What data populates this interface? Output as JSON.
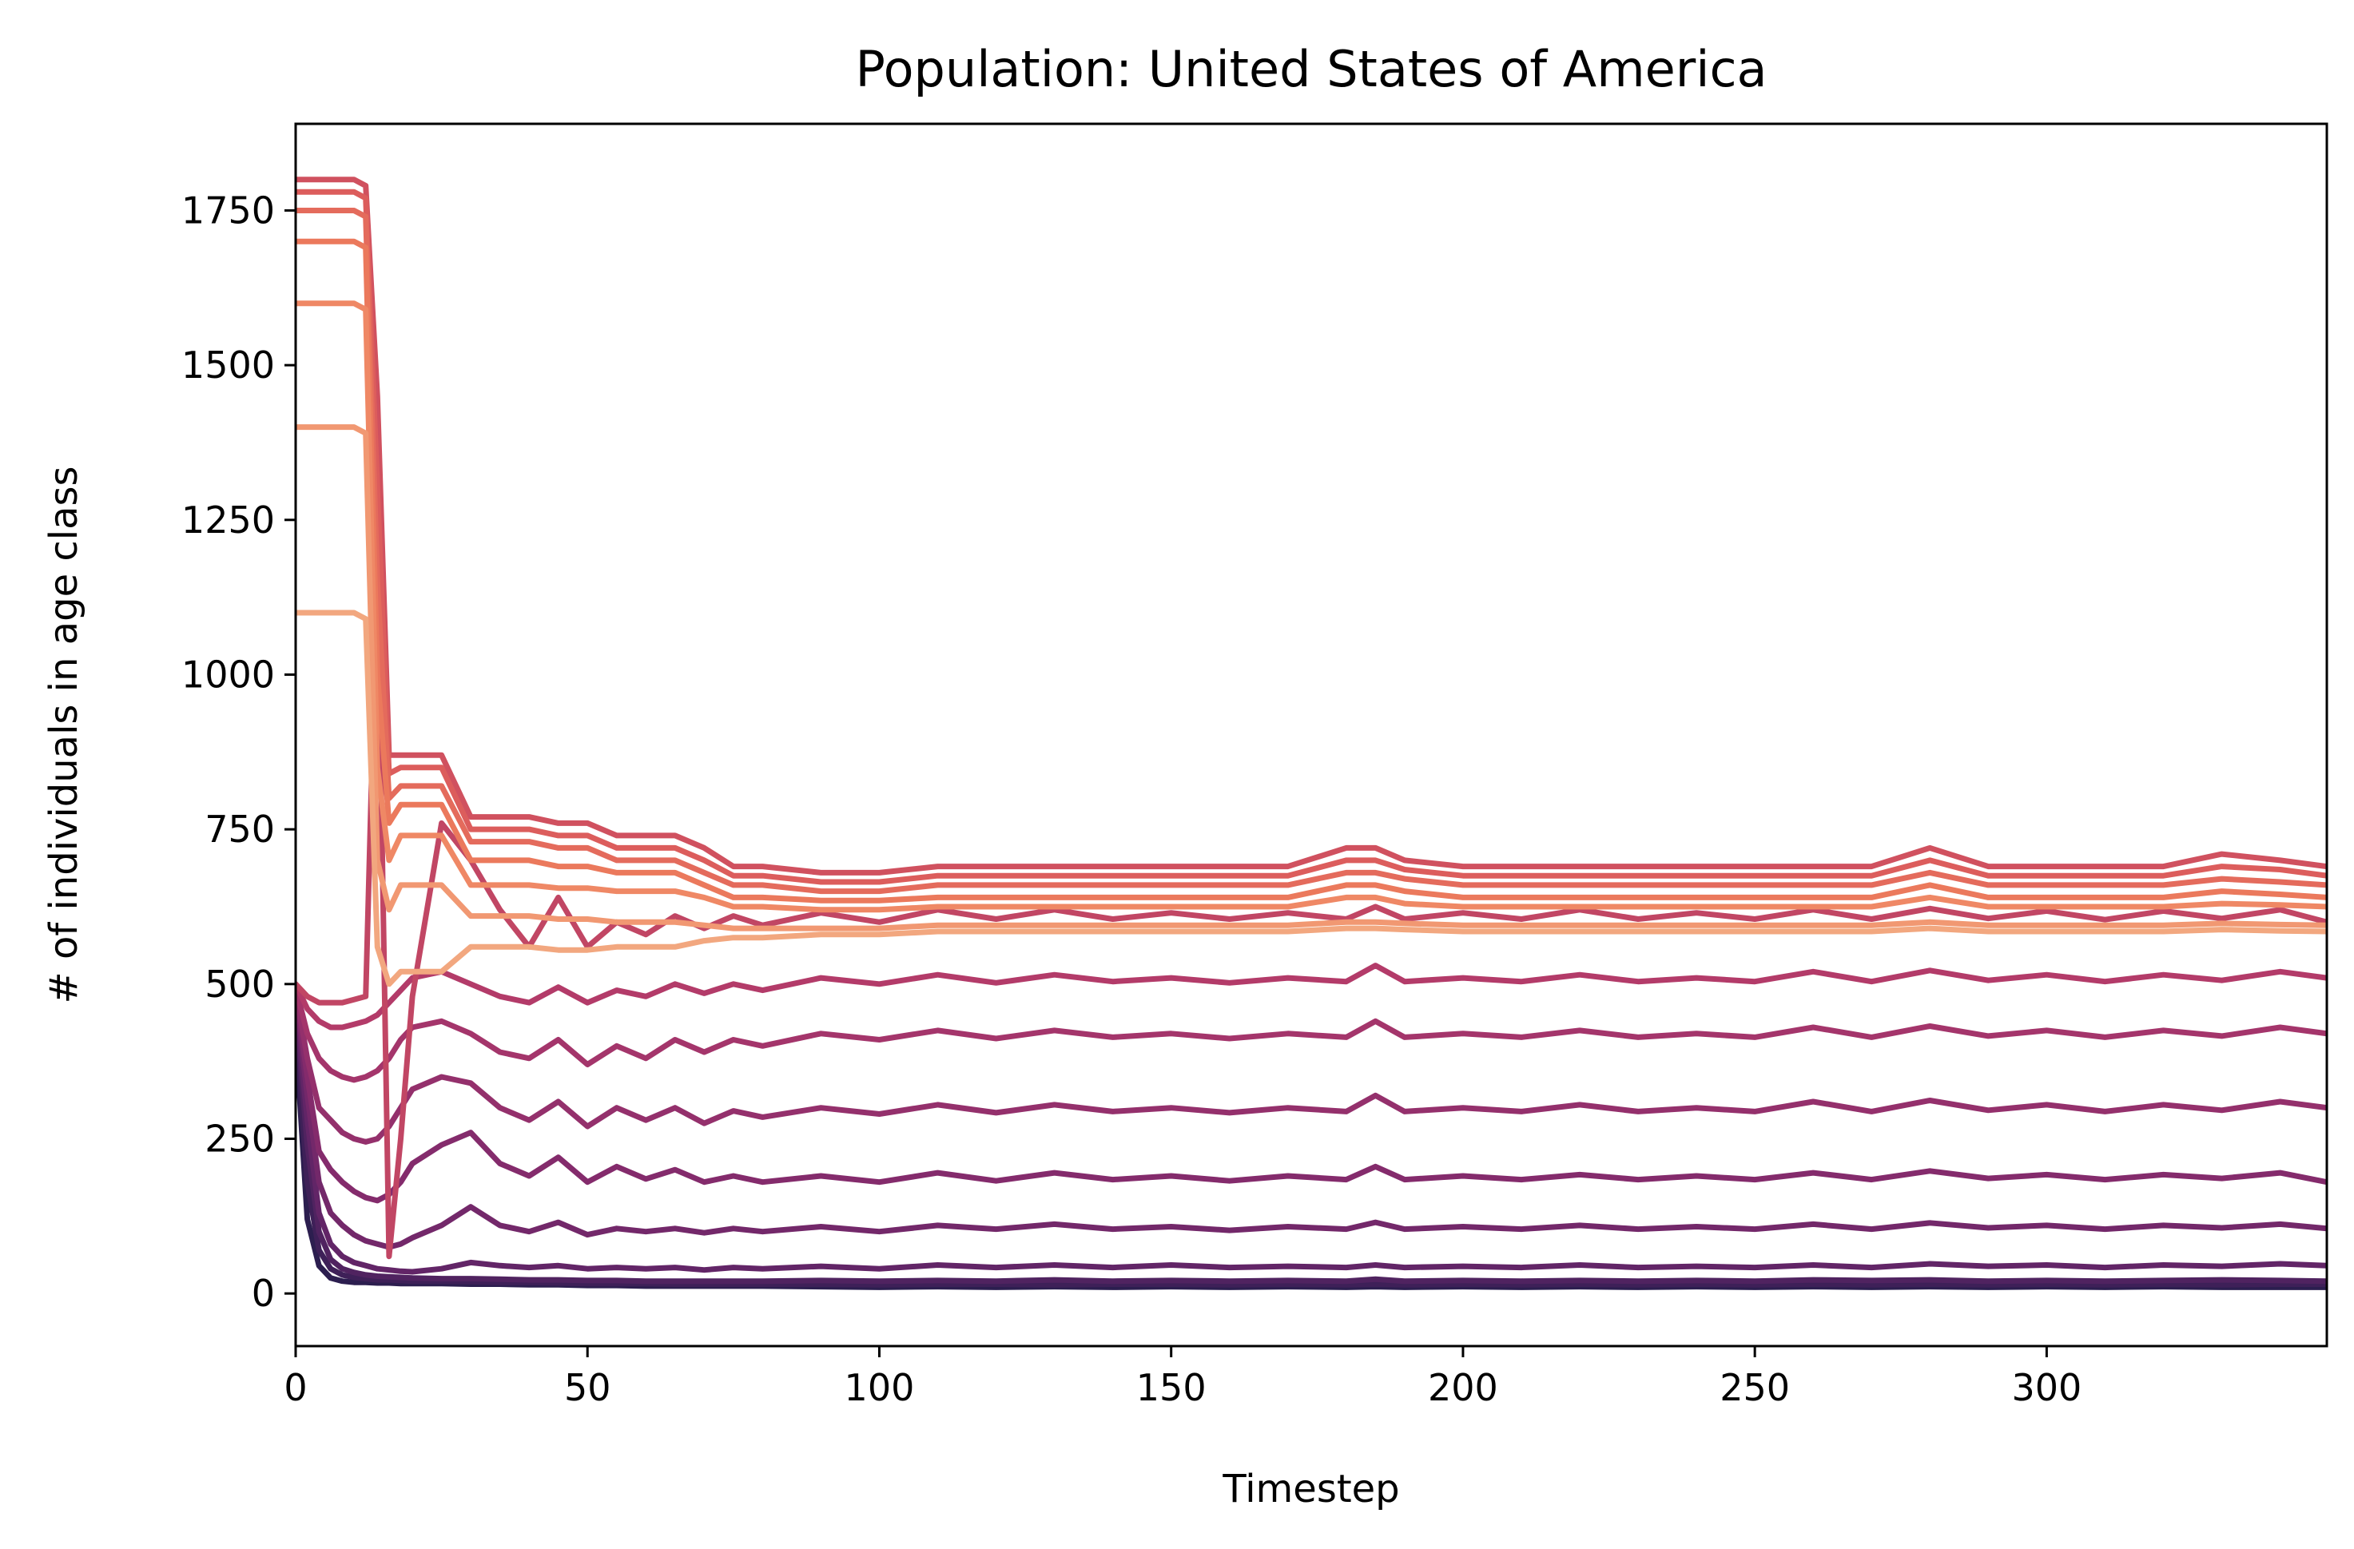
{
  "chart_data": {
    "type": "line",
    "title": "Population: United States of America",
    "xlabel": "Timestep",
    "ylabel": "# of individuals in age class",
    "xlim": [
      0,
      348
    ],
    "ylim": [
      -85,
      1890
    ],
    "x_ticks": [
      0,
      50,
      100,
      150,
      200,
      250,
      300
    ],
    "y_ticks": [
      0,
      250,
      500,
      750,
      1000,
      1250,
      1500,
      1750
    ],
    "grid": false,
    "legend": "none",
    "colormap": [
      "#2c1e4f",
      "#5c2466",
      "#8a2c6d",
      "#b33b69",
      "#d9585c",
      "#ee7e5c",
      "#f2a77f"
    ],
    "series_count": 17,
    "x": [
      0,
      2,
      4,
      6,
      8,
      10,
      12,
      14,
      16,
      18,
      20,
      25,
      30,
      35,
      40,
      45,
      50,
      55,
      60,
      65,
      70,
      75,
      80,
      90,
      100,
      110,
      120,
      130,
      140,
      150,
      160,
      170,
      180,
      185,
      190,
      200,
      210,
      220,
      230,
      240,
      250,
      260,
      270,
      280,
      290,
      300,
      310,
      320,
      330,
      340,
      348
    ],
    "series": [
      {
        "values": [
          420,
          120,
          45,
          25,
          20,
          18,
          18,
          17,
          17,
          16,
          16,
          16,
          15,
          15,
          14,
          14,
          13,
          13,
          12,
          12,
          12,
          12,
          12,
          11,
          10,
          11,
          10,
          11,
          10,
          11,
          10,
          11,
          10,
          11,
          10,
          11,
          10,
          11,
          10,
          11,
          10,
          11,
          10,
          11,
          10,
          11,
          10,
          11,
          10,
          10,
          10
        ]
      },
      {
        "values": [
          440,
          180,
          70,
          40,
          30,
          26,
          24,
          22,
          22,
          21,
          20,
          20,
          19,
          18,
          18,
          17,
          16,
          16,
          16,
          15,
          15,
          15,
          15,
          15,
          14,
          15,
          15,
          14,
          15,
          15,
          14,
          15,
          14,
          15,
          14,
          15,
          14,
          15,
          14,
          15,
          14,
          15,
          14,
          15,
          14,
          15,
          14,
          15,
          14,
          15,
          15
        ]
      },
      {
        "values": [
          460,
          240,
          100,
          55,
          40,
          34,
          30,
          28,
          27,
          26,
          25,
          24,
          24,
          23,
          22,
          22,
          21,
          21,
          20,
          20,
          20,
          20,
          20,
          21,
          20,
          21,
          20,
          22,
          20,
          21,
          20,
          21,
          20,
          23,
          20,
          21,
          20,
          21,
          20,
          21,
          20,
          22,
          21,
          22,
          20,
          21,
          20,
          21,
          22,
          21,
          20
        ]
      },
      {
        "values": [
          470,
          280,
          130,
          80,
          60,
          50,
          45,
          40,
          38,
          36,
          35,
          40,
          50,
          45,
          42,
          45,
          40,
          42,
          40,
          42,
          38,
          42,
          40,
          44,
          40,
          46,
          42,
          46,
          42,
          46,
          42,
          44,
          42,
          46,
          42,
          44,
          42,
          46,
          42,
          44,
          42,
          46,
          42,
          48,
          44,
          46,
          42,
          46,
          44,
          48,
          45
        ]
      },
      {
        "values": [
          480,
          320,
          180,
          130,
          110,
          95,
          85,
          80,
          75,
          80,
          90,
          110,
          140,
          110,
          100,
          115,
          95,
          105,
          100,
          105,
          98,
          105,
          100,
          108,
          100,
          110,
          104,
          112,
          104,
          108,
          102,
          108,
          104,
          115,
          104,
          108,
          104,
          110,
          104,
          108,
          104,
          112,
          104,
          114,
          106,
          110,
          104,
          110,
          106,
          112,
          105
        ]
      },
      {
        "values": [
          485,
          350,
          230,
          200,
          180,
          165,
          155,
          150,
          160,
          180,
          210,
          240,
          260,
          210,
          190,
          220,
          180,
          205,
          185,
          200,
          180,
          190,
          180,
          190,
          180,
          195,
          182,
          195,
          184,
          190,
          182,
          190,
          184,
          205,
          184,
          190,
          184,
          192,
          184,
          190,
          184,
          195,
          184,
          198,
          186,
          192,
          184,
          192,
          186,
          195,
          180
        ]
      },
      {
        "values": [
          490,
          380,
          300,
          280,
          260,
          250,
          245,
          250,
          270,
          300,
          330,
          350,
          340,
          300,
          280,
          310,
          270,
          300,
          280,
          300,
          275,
          295,
          285,
          300,
          290,
          305,
          292,
          305,
          294,
          300,
          292,
          300,
          294,
          320,
          294,
          300,
          294,
          305,
          294,
          300,
          294,
          310,
          294,
          312,
          296,
          305,
          294,
          305,
          296,
          310,
          300
        ]
      },
      {
        "values": [
          495,
          420,
          380,
          360,
          350,
          345,
          350,
          360,
          380,
          410,
          430,
          440,
          420,
          390,
          380,
          410,
          370,
          400,
          380,
          410,
          390,
          410,
          400,
          420,
          410,
          425,
          412,
          425,
          414,
          420,
          412,
          420,
          414,
          440,
          414,
          420,
          414,
          425,
          414,
          420,
          414,
          430,
          414,
          432,
          416,
          425,
          414,
          425,
          416,
          430,
          420
        ]
      },
      {
        "values": [
          500,
          460,
          440,
          430,
          430,
          435,
          440,
          450,
          470,
          490,
          510,
          520,
          500,
          480,
          470,
          495,
          470,
          490,
          480,
          500,
          485,
          500,
          490,
          510,
          500,
          515,
          502,
          515,
          504,
          510,
          502,
          510,
          504,
          530,
          504,
          510,
          504,
          515,
          504,
          510,
          504,
          520,
          504,
          522,
          506,
          515,
          504,
          515,
          506,
          520,
          510
        ]
      },
      {
        "values": [
          500,
          480,
          470,
          470,
          470,
          475,
          480,
          1180,
          60,
          250,
          480,
          760,
          700,
          620,
          560,
          640,
          560,
          600,
          580,
          610,
          590,
          610,
          595,
          615,
          600,
          620,
          605,
          620,
          605,
          615,
          605,
          615,
          605,
          625,
          605,
          615,
          605,
          620,
          605,
          615,
          605,
          620,
          605,
          622,
          606,
          618,
          604,
          618,
          606,
          620,
          600
        ]
      },
      {
        "values": [
          1800,
          1800,
          1800,
          1800,
          1800,
          1800,
          1790,
          1450,
          870,
          870,
          870,
          870,
          770,
          770,
          770,
          760,
          760,
          740,
          740,
          740,
          720,
          690,
          690,
          680,
          680,
          690,
          690,
          690,
          690,
          690,
          690,
          690,
          720,
          720,
          700,
          690,
          690,
          690,
          690,
          690,
          690,
          690,
          690,
          720,
          690,
          690,
          690,
          690,
          710,
          700,
          690
        ]
      },
      {
        "values": [
          1780,
          1780,
          1780,
          1780,
          1780,
          1780,
          1770,
          1300,
          840,
          850,
          850,
          850,
          750,
          750,
          750,
          740,
          740,
          720,
          720,
          720,
          700,
          675,
          675,
          665,
          665,
          675,
          675,
          675,
          675,
          675,
          675,
          675,
          700,
          700,
          685,
          675,
          675,
          675,
          675,
          675,
          675,
          675,
          675,
          700,
          675,
          675,
          675,
          675,
          690,
          685,
          675
        ]
      },
      {
        "values": [
          1750,
          1750,
          1750,
          1750,
          1750,
          1750,
          1740,
          1150,
          800,
          820,
          820,
          820,
          730,
          730,
          730,
          720,
          720,
          700,
          700,
          700,
          680,
          660,
          660,
          650,
          650,
          660,
          660,
          660,
          660,
          660,
          660,
          660,
          680,
          680,
          670,
          660,
          660,
          660,
          660,
          660,
          660,
          660,
          660,
          680,
          660,
          660,
          660,
          660,
          670,
          665,
          660
        ]
      },
      {
        "values": [
          1700,
          1700,
          1700,
          1700,
          1700,
          1700,
          1690,
          1000,
          760,
          790,
          790,
          790,
          700,
          700,
          700,
          690,
          690,
          680,
          680,
          680,
          660,
          640,
          640,
          635,
          635,
          640,
          640,
          640,
          640,
          640,
          640,
          640,
          660,
          660,
          650,
          640,
          640,
          640,
          640,
          640,
          640,
          640,
          640,
          660,
          640,
          640,
          640,
          640,
          650,
          645,
          640
        ]
      },
      {
        "values": [
          1600,
          1600,
          1600,
          1600,
          1600,
          1600,
          1590,
          850,
          700,
          740,
          740,
          740,
          660,
          660,
          660,
          655,
          655,
          650,
          650,
          650,
          640,
          625,
          625,
          620,
          620,
          625,
          625,
          625,
          625,
          625,
          625,
          625,
          640,
          640,
          630,
          625,
          625,
          625,
          625,
          625,
          625,
          625,
          625,
          640,
          625,
          625,
          625,
          625,
          630,
          628,
          625
        ]
      },
      {
        "values": [
          1400,
          1400,
          1400,
          1400,
          1400,
          1400,
          1390,
          700,
          620,
          660,
          660,
          660,
          610,
          610,
          610,
          605,
          605,
          600,
          600,
          600,
          595,
          590,
          590,
          590,
          590,
          595,
          595,
          595,
          595,
          595,
          595,
          595,
          600,
          600,
          598,
          595,
          595,
          595,
          595,
          595,
          595,
          595,
          595,
          600,
          595,
          595,
          595,
          595,
          598,
          596,
          595
        ]
      },
      {
        "values": [
          1100,
          1100,
          1100,
          1100,
          1100,
          1100,
          1090,
          560,
          500,
          520,
          520,
          520,
          560,
          560,
          560,
          555,
          555,
          560,
          560,
          560,
          570,
          575,
          575,
          580,
          580,
          585,
          585,
          585,
          585,
          585,
          585,
          585,
          590,
          590,
          588,
          585,
          585,
          585,
          585,
          585,
          585,
          585,
          585,
          590,
          585,
          585,
          585,
          585,
          588,
          586,
          585
        ]
      }
    ]
  }
}
